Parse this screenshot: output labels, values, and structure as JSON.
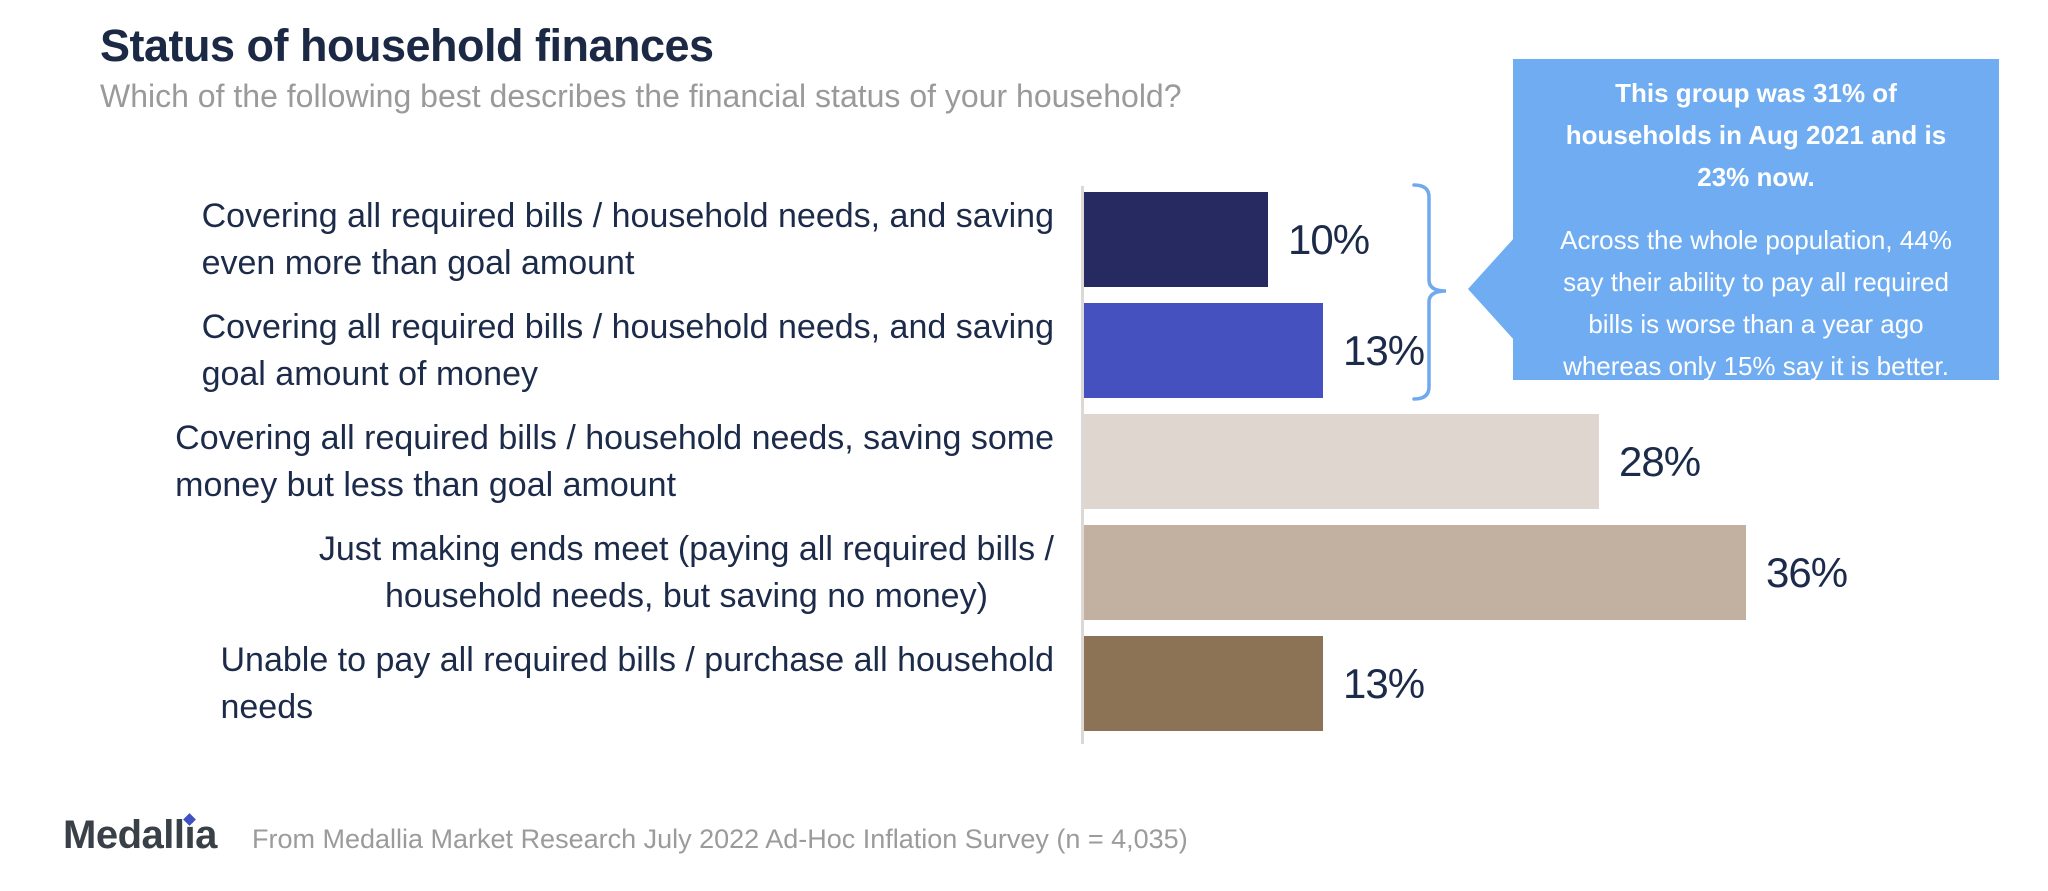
{
  "header": {
    "title": "Status of household finances",
    "subtitle": "Which of the following best describes the financial status of your household?"
  },
  "chart_data": {
    "type": "bar",
    "orientation": "horizontal",
    "unit": "percent",
    "xlim": [
      0,
      50
    ],
    "grid": false,
    "categories": [
      "Covering all required bills / household needs, and saving even more than goal amount",
      "Covering all required bills / household needs, and saving goal amount of money",
      "Covering all required bills / household needs, saving some money but less than goal amount",
      "Just making ends meet (paying all required bills / household needs, but saving no money)",
      "Unable to pay all required bills / purchase all household needs"
    ],
    "values": [
      10,
      13,
      28,
      36,
      13
    ],
    "rows": [
      {
        "label_lines": [
          "Covering all required bills / household needs, and saving",
          "even more than goal amount"
        ],
        "value": 10,
        "value_label": "10%",
        "color": "#262a60"
      },
      {
        "label_lines": [
          "Covering all required bills / household needs, and saving",
          "goal amount of money"
        ],
        "value": 13,
        "value_label": "13%",
        "color": "#4551be"
      },
      {
        "label_lines": [
          "Covering all required bills / household needs, saving some",
          "money but less than goal amount"
        ],
        "value": 28,
        "value_label": "28%",
        "color": "#ded6cf"
      },
      {
        "label_lines": [
          "Just making ends meet (paying all required bills /",
          "household needs, but saving no money)"
        ],
        "value": 36,
        "value_label": "36%",
        "color": "#c2b1a1"
      },
      {
        "label_lines": [
          "Unable to pay all required bills / purchase all household",
          "needs"
        ],
        "value": 13,
        "value_label": "13%",
        "color": "#8c7356"
      }
    ]
  },
  "callout": {
    "bold_lines": [
      "This group was 31% of",
      "households in Aug 2021 and is",
      "23% now."
    ],
    "body_lines": [
      "Across the whole population, 44%",
      "say their ability to pay all required",
      "bills is worse than a year ago",
      "whereas only 15% say it is better."
    ],
    "bg_color": "#6facf1",
    "text_color": "#ffffff"
  },
  "footer": {
    "brand": "Medallia",
    "source": "From Medallia Market Research July 2022 Ad-Hoc Inflation Survey (n = 4,035)"
  }
}
